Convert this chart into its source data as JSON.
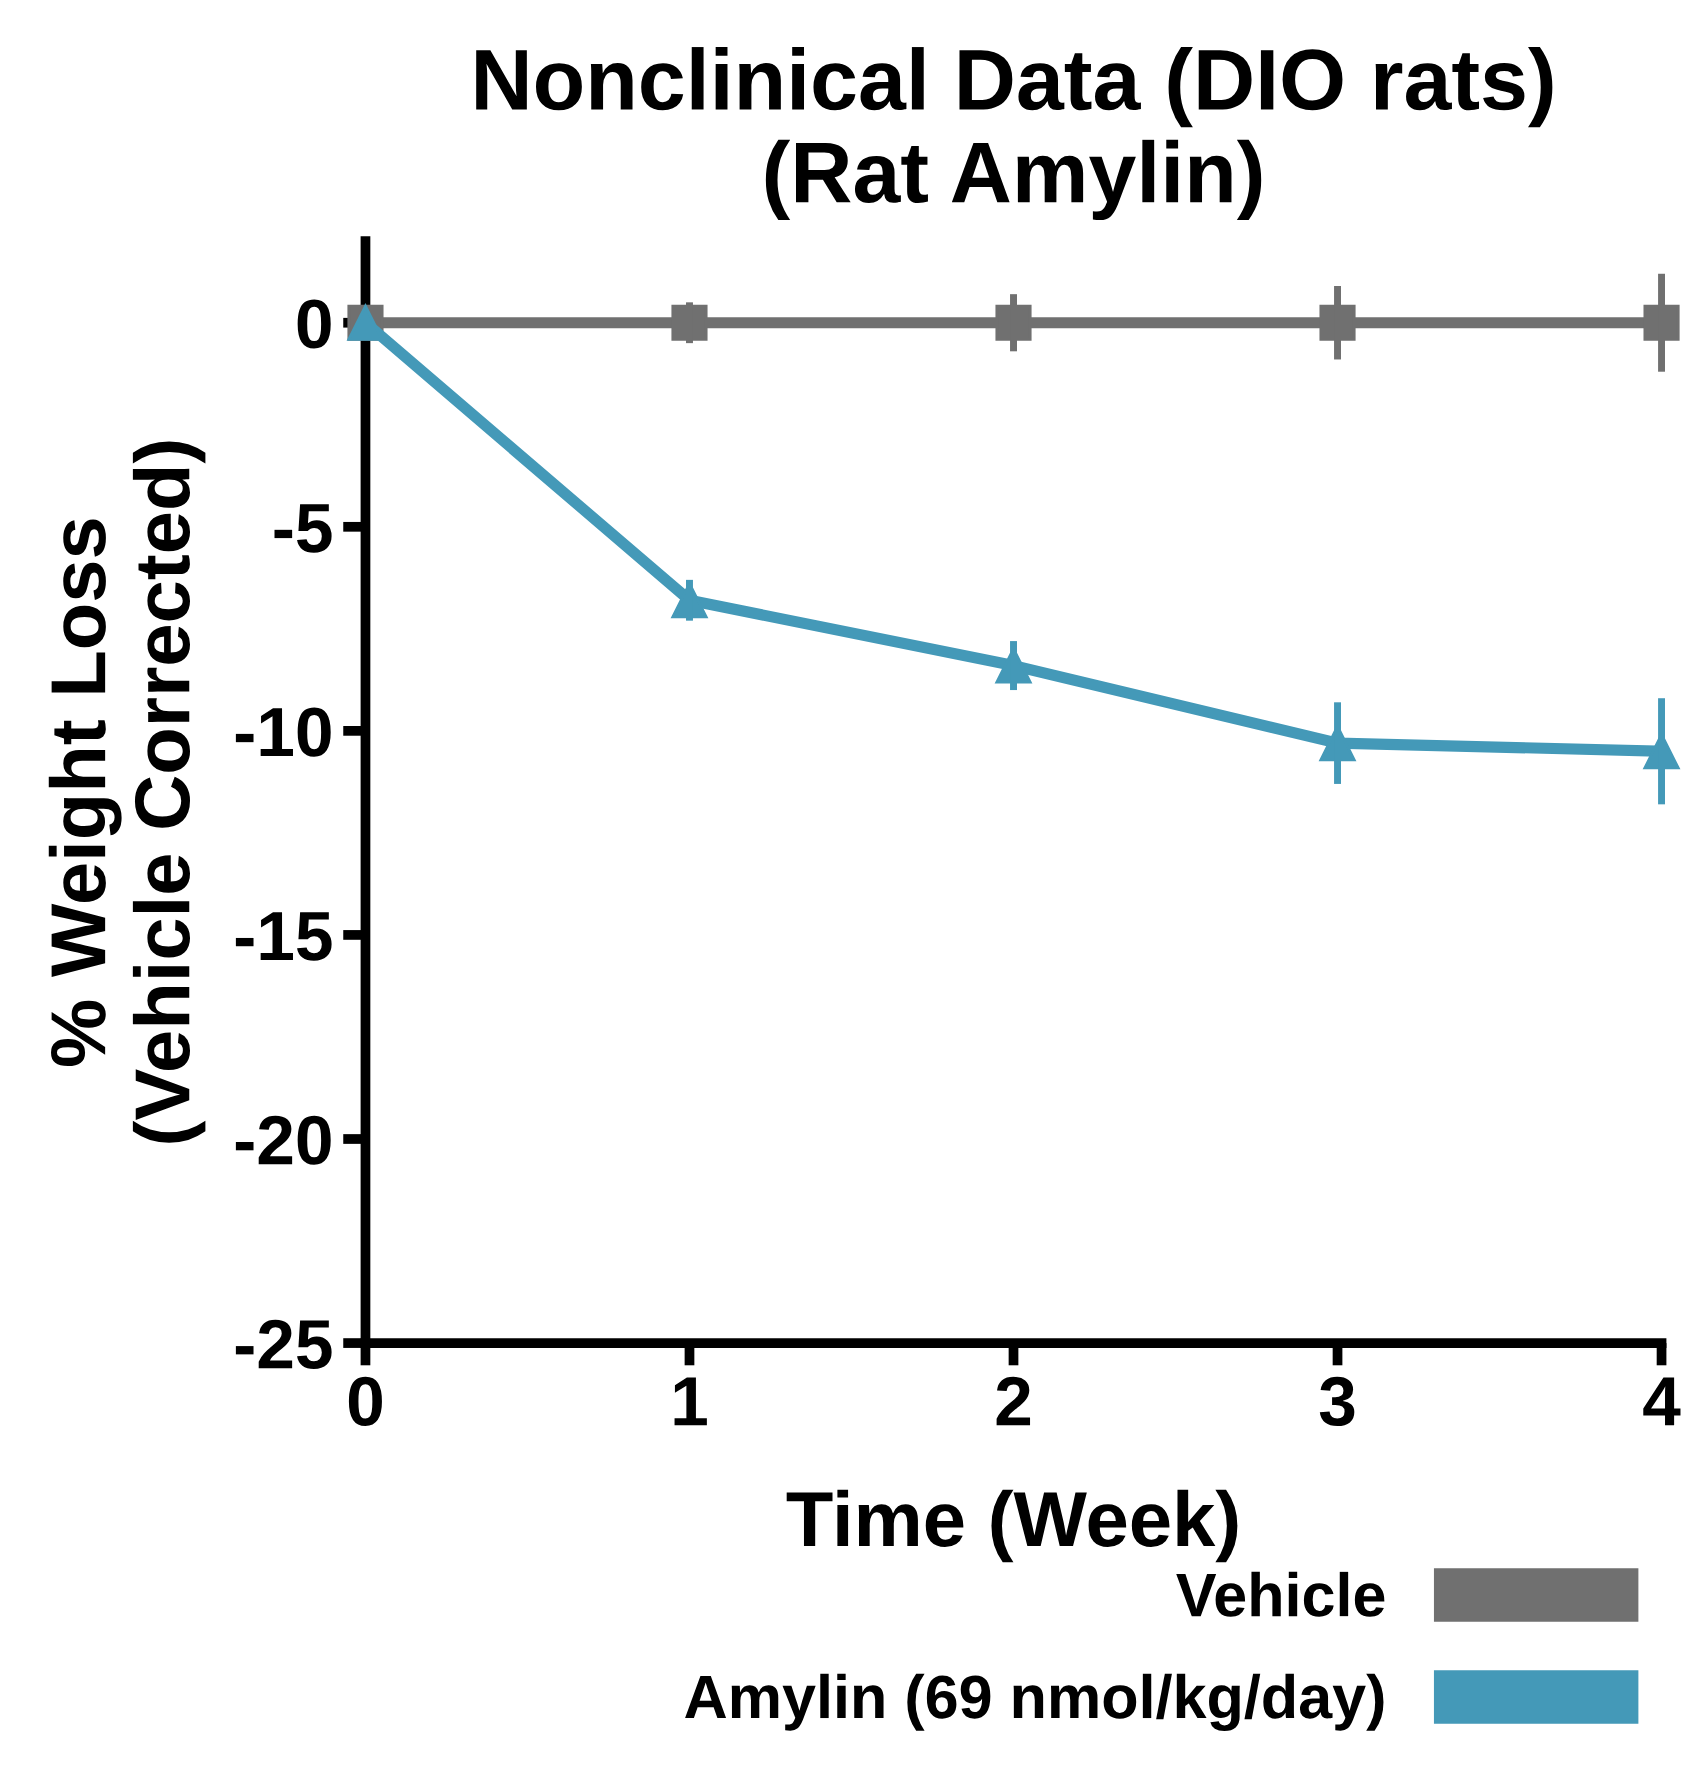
{
  "chart_data": {
    "type": "line",
    "title": "Nonclinical Data (DIO rats)\n(Rat Amylin)",
    "xlabel": "Time (Week)",
    "ylabel": "% Weight Loss\n(Vehicle Corrected)",
    "x": [
      0,
      1,
      2,
      3,
      4
    ],
    "series": [
      {
        "name": "Vehicle",
        "color": "#707070",
        "marker": "square",
        "values": [
          0,
          0,
          0,
          0,
          0
        ],
        "errors": [
          null,
          0.5,
          0.7,
          0.9,
          1.2
        ]
      },
      {
        "name": "Amylin (69 nmol/kg/day)",
        "color": "#4499b8",
        "marker": "triangle",
        "values": [
          0,
          -6.8,
          -8.4,
          -10.3,
          -10.5
        ],
        "errors": [
          null,
          0.5,
          0.6,
          1.0,
          1.3
        ]
      }
    ],
    "xlim": [
      0,
      4
    ],
    "xticks": [
      0,
      1,
      2,
      3,
      4
    ],
    "ylim": [
      -25,
      2
    ],
    "yticks": [
      {
        "value": -25,
        "label": "-25"
      },
      {
        "value": -20,
        "label": "-20"
      },
      {
        "value": -15,
        "label": "-15"
      },
      {
        "value": -10,
        "label": "-10"
      },
      {
        "value": -5,
        "label": "-5"
      },
      0
    ],
    "grid": false,
    "legend": "bottom right",
    "line_style": "solid"
  }
}
